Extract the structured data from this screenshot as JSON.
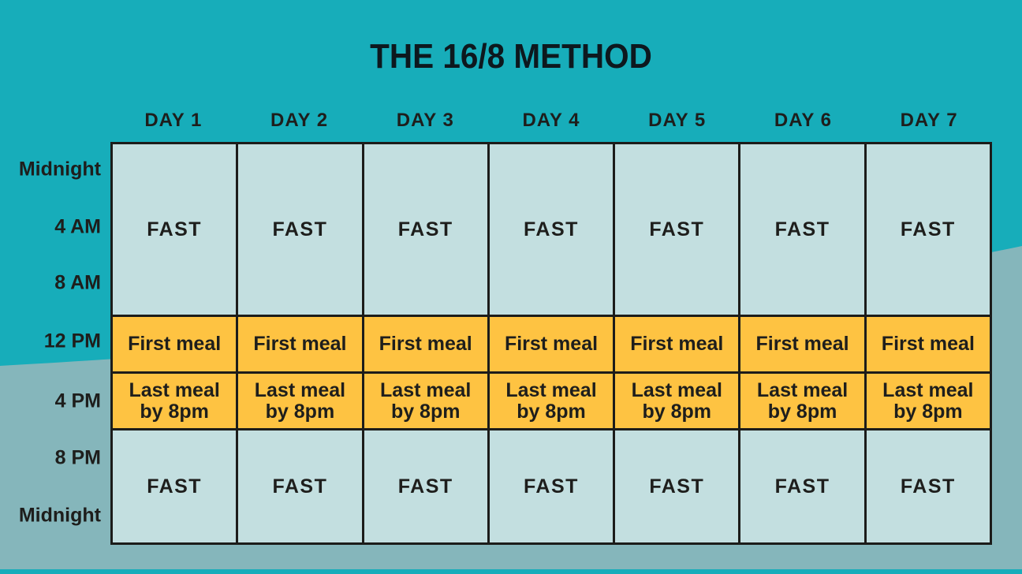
{
  "title": "THE 16/8 METHOD",
  "colors": {
    "background_top": "#17adba",
    "background_wave": "#85b6bb",
    "cell_fast": "#c3dfe0",
    "cell_meal": "#fec342",
    "grid_line": "#1c1c1a",
    "text": "#1e1e1c",
    "title_text": "#0d181e"
  },
  "day_headers": [
    "DAY 1",
    "DAY 2",
    "DAY 3",
    "DAY 4",
    "DAY 5",
    "DAY 6",
    "DAY 7"
  ],
  "time_labels": [
    "Midnight",
    "4 AM",
    "8 AM",
    "12 PM",
    "4 PM",
    "8 PM",
    "Midnight"
  ],
  "grid": {
    "rows": [
      {
        "type": "fast",
        "cells": [
          "FAST",
          "FAST",
          "FAST",
          "FAST",
          "FAST",
          "FAST",
          "FAST"
        ]
      },
      {
        "type": "meal",
        "cells": [
          "First meal",
          "First meal",
          "First meal",
          "First meal",
          "First meal",
          "First meal",
          "First meal"
        ]
      },
      {
        "type": "meal",
        "cells": [
          "Last meal by 8pm",
          "Last meal by 8pm",
          "Last meal by 8pm",
          "Last meal by 8pm",
          "Last meal by 8pm",
          "Last meal by 8pm",
          "Last meal by 8pm"
        ]
      },
      {
        "type": "fast",
        "cells": [
          "FAST",
          "FAST",
          "FAST",
          "FAST",
          "FAST",
          "FAST",
          "FAST"
        ]
      }
    ]
  },
  "chart_data": {
    "type": "table",
    "title": "THE 16/8 METHOD",
    "columns": [
      "DAY 1",
      "DAY 2",
      "DAY 3",
      "DAY 4",
      "DAY 5",
      "DAY 6",
      "DAY 7"
    ],
    "time_axis": [
      "Midnight",
      "4 AM",
      "8 AM",
      "12 PM",
      "4 PM",
      "8 PM",
      "Midnight"
    ],
    "rows": [
      {
        "time_span": "Midnight - 12 PM",
        "value": "FAST",
        "applies_to": "every day"
      },
      {
        "time_span": "12 PM",
        "value": "First meal",
        "applies_to": "every day"
      },
      {
        "time_span": "4 PM",
        "value": "Last meal by 8pm",
        "applies_to": "every day"
      },
      {
        "time_span": "8 PM - Midnight",
        "value": "FAST",
        "applies_to": "every day"
      }
    ],
    "legend_position": "none",
    "grid": "on"
  }
}
